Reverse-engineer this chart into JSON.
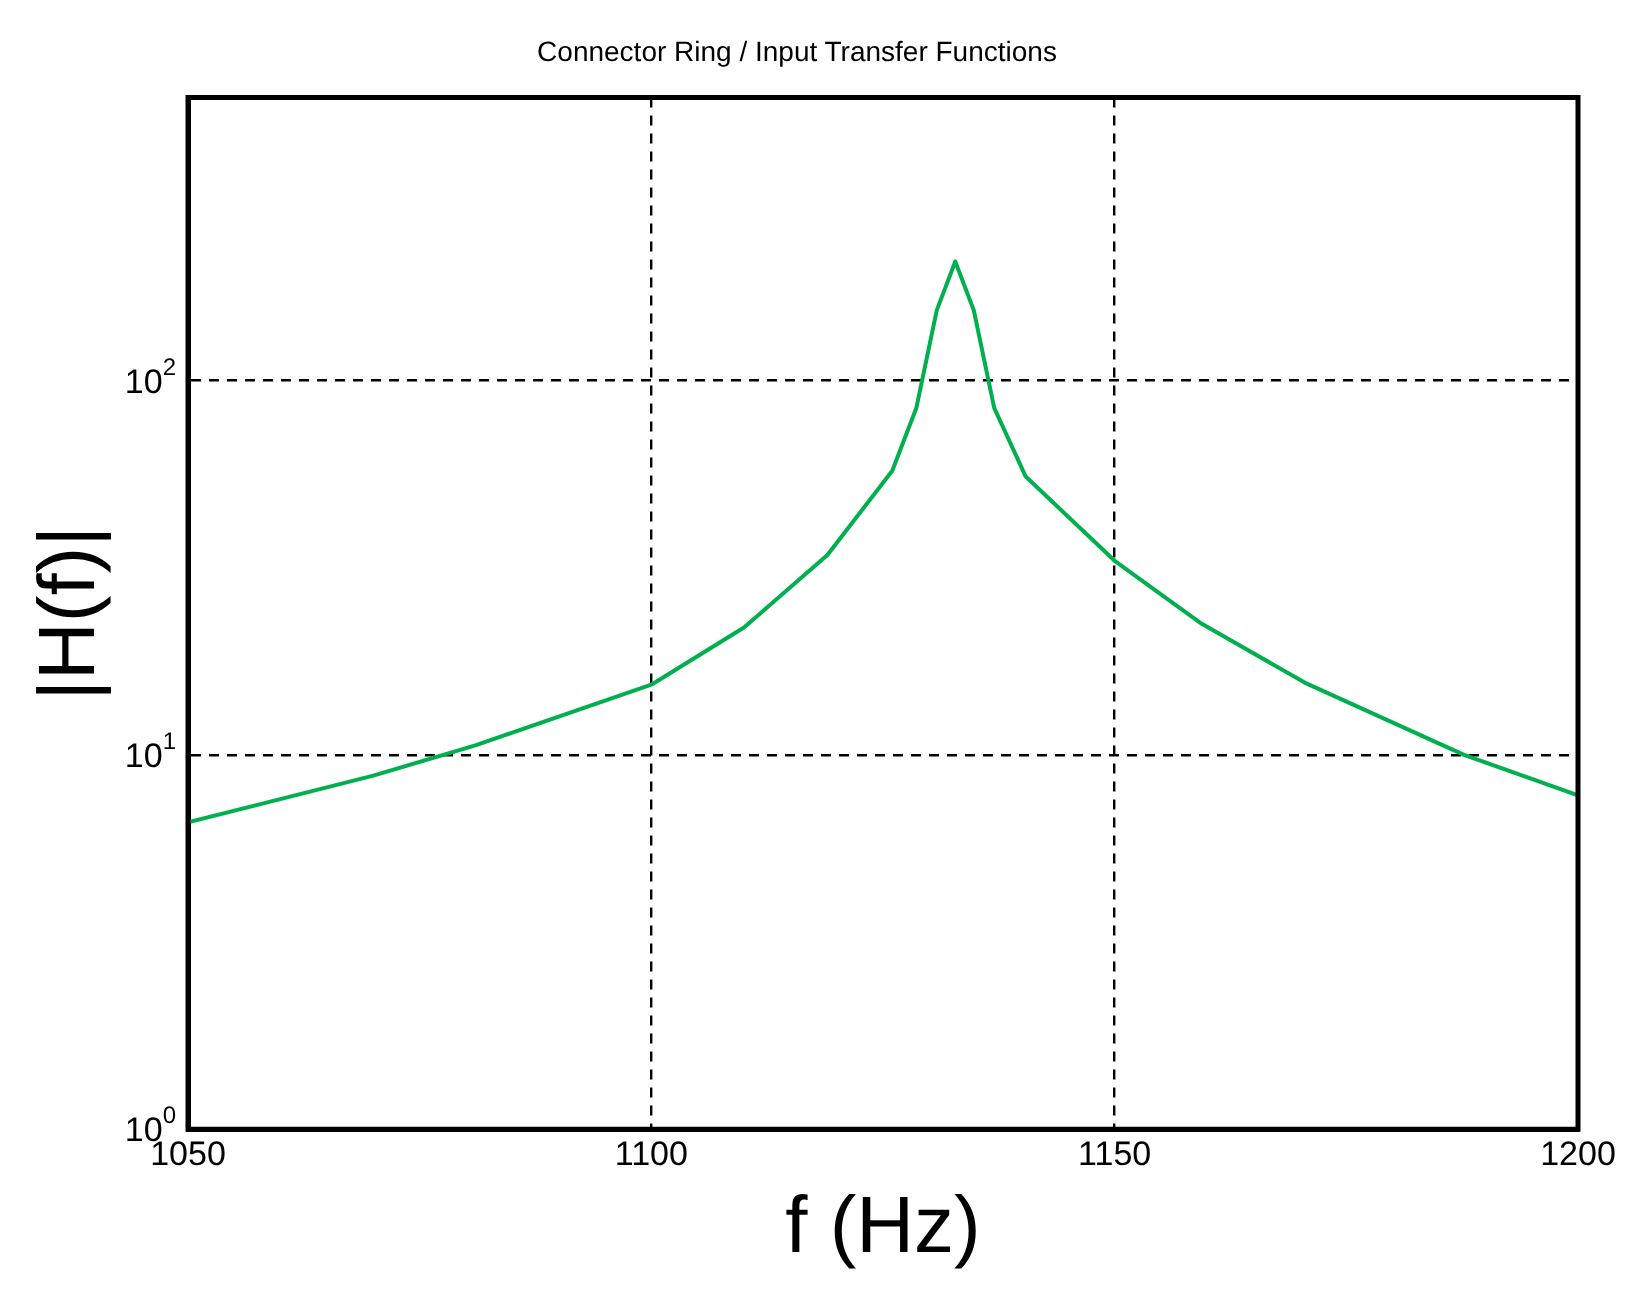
{
  "chart_data": {
    "type": "line",
    "title": "Connector Ring / Input Transfer Functions",
    "xlabel": "f (Hz)",
    "ylabel": "|H(f)|",
    "x": [
      1050,
      1070,
      1081,
      1100,
      1110,
      1119,
      1126,
      1128.6,
      1130.8,
      1132.8,
      1134.8,
      1137,
      1140.4,
      1150,
      1159.4,
      1170.5,
      1187.7,
      1200
    ],
    "series": [
      {
        "color": "#00b04f",
        "values": [
          6.6,
          8.8,
          10.6,
          15.4,
          21.9,
          34.2,
          57.4,
          84.5,
          154,
          208,
          154,
          84.5,
          55.4,
          33,
          22.4,
          15.6,
          10,
          7.8
        ]
      }
    ],
    "log": "y",
    "xlim": [
      1050,
      1200
    ],
    "xticks": [
      1050,
      1100,
      1150,
      1200
    ],
    "ylim": [
      1,
      570
    ],
    "yticks": [
      {
        "value": 1,
        "label": "10$^{0}$"
      },
      {
        "value": 10,
        "label": "10$^{1}$"
      },
      {
        "value": 100,
        "label": "10$^{2}$"
      }
    ],
    "grid": true,
    "legend": false,
    "marker": "none",
    "line_style": "solid"
  }
}
